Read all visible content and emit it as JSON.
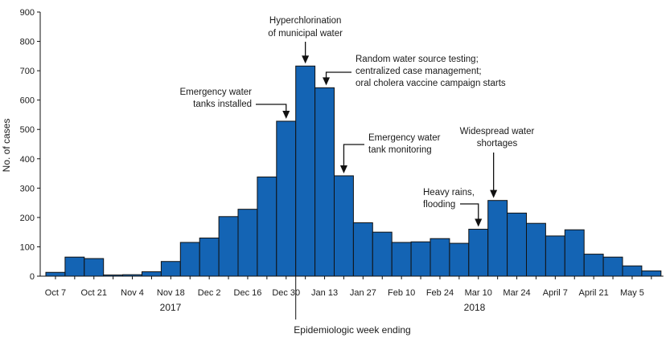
{
  "chart_data": {
    "type": "bar",
    "title": "",
    "xlabel": "Epidemiologic week ending",
    "ylabel": "No. of cases",
    "ylim": [
      0,
      900
    ],
    "y_ticks": [
      0,
      100,
      200,
      300,
      400,
      500,
      600,
      700,
      800,
      900
    ],
    "bar_color": "#1464b4",
    "x_tick_labels": [
      "Oct 7",
      "Oct 21",
      "Nov 4",
      "Nov 18",
      "Dec 2",
      "Dec 16",
      "Dec 30",
      "Jan 13",
      "Jan 27",
      "Feb 10",
      "Feb 24",
      "Mar 10",
      "Mar 24",
      "April 7",
      "April 21",
      "May 5"
    ],
    "years": [
      "2017",
      "2018"
    ],
    "values": [
      13,
      65,
      60,
      4,
      5,
      15,
      50,
      115,
      130,
      203,
      228,
      338,
      528,
      716,
      642,
      342,
      182,
      150,
      115,
      117,
      128,
      112,
      160,
      258,
      215,
      180,
      137,
      158,
      75,
      65,
      35,
      18
    ],
    "annotations": [
      {
        "lines": [
          "Hyperchlorination",
          "of municipal water"
        ],
        "bar_index": 13
      },
      {
        "lines": [
          "Random water source testing;",
          "centralized case management;",
          "oral cholera vaccine campaign starts"
        ],
        "bar_index": 14
      },
      {
        "lines": [
          "Emergency water",
          "tanks installed"
        ],
        "bar_index": 12
      },
      {
        "lines": [
          "Emergency water",
          "tank monitoring"
        ],
        "bar_index": 15
      },
      {
        "lines": [
          "Widespread water",
          "shortages"
        ],
        "bar_index": 23
      },
      {
        "lines": [
          "Heavy rains,",
          "flooding"
        ],
        "bar_index": 22
      }
    ]
  }
}
